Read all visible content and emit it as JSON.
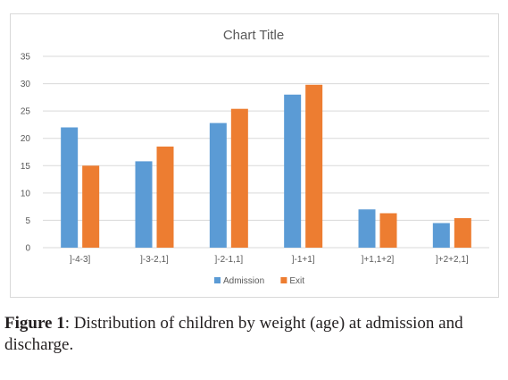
{
  "chart_data": {
    "type": "bar",
    "title": "Chart Title",
    "xlabel": "",
    "ylabel": "",
    "categories": [
      "]-4-3]",
      "]-3-2,1]",
      "]-2-1,1]",
      "]-1+1]",
      "]+1,1+2]",
      "]+2+2,1]"
    ],
    "series": [
      {
        "name": "Admission",
        "color": "#5b9bd5",
        "values": [
          22,
          15.8,
          22.8,
          28,
          7,
          4.5
        ]
      },
      {
        "name": "Exit",
        "color": "#ed7d31",
        "values": [
          15,
          18.5,
          25.4,
          29.8,
          6.3,
          5.4
        ]
      }
    ],
    "ylim": [
      0,
      35
    ],
    "yticks": [
      0,
      5,
      10,
      15,
      20,
      25,
      30,
      35
    ],
    "grid": true,
    "legend_position": "bottom"
  },
  "caption": {
    "label": "Figure 1",
    "text": ": Distribution of children by weight (age) at admission and discharge."
  }
}
